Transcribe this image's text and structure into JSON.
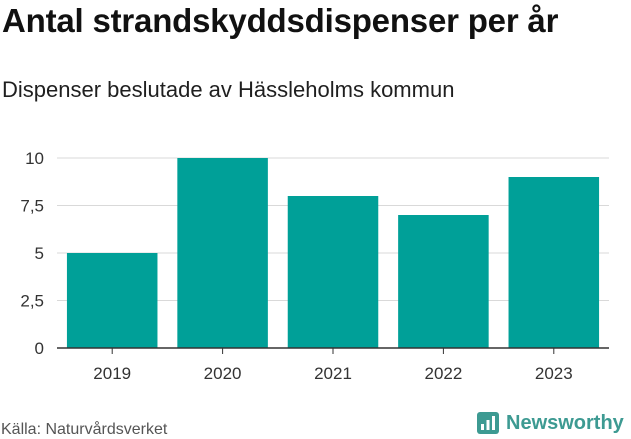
{
  "header": {
    "title": "Antal strandskyddsdispenser per år",
    "subtitle": "Dispenser beslutade av Hässleholms kommun"
  },
  "footer": {
    "source": "Källa: Naturvårdsverket",
    "brand": "Newsworthy"
  },
  "colors": {
    "bar": "#00a098",
    "grid": "#d9d9d9",
    "axis": "#333333",
    "brand": "#3d9a92"
  },
  "chart_data": {
    "type": "bar",
    "title": "Antal strandskyddsdispenser per år",
    "subtitle": "Dispenser beslutade av Hässleholms kommun",
    "categories": [
      "2019",
      "2020",
      "2021",
      "2022",
      "2023"
    ],
    "values": [
      5,
      10,
      8,
      7,
      9
    ],
    "xlabel": "",
    "ylabel": "",
    "ylim": [
      0,
      10
    ],
    "yticks": [
      0,
      2.5,
      5,
      7.5,
      10
    ],
    "ytick_labels": [
      "0",
      "2,5",
      "5",
      "7,5",
      "10"
    ],
    "grid": true,
    "legend": "none"
  }
}
